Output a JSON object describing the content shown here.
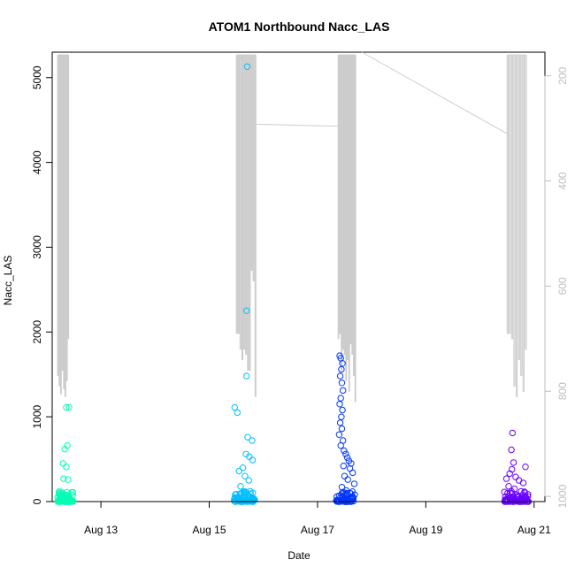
{
  "chart_data": {
    "type": "scatter",
    "title": "ATOM1 Northbound Nacc_LAS",
    "xlabel": "Date",
    "ylabel": "Nacc_LAS",
    "x_ticks": [
      "Aug 13",
      "Aug 15",
      "Aug 17",
      "Aug 19",
      "Aug 21"
    ],
    "x_tick_values": [
      13,
      15,
      17,
      19,
      21
    ],
    "xlim": [
      12.1,
      21.2
    ],
    "y_ticks": [
      "0",
      "1000",
      "2000",
      "3000",
      "4000",
      "5000"
    ],
    "y_tick_values": [
      0,
      1000,
      2000,
      3000,
      4000,
      5000
    ],
    "ylim": [
      0,
      5300
    ],
    "y2_ticks": [
      "200",
      "400",
      "600",
      "800",
      "1000"
    ],
    "y2_tick_values": [
      200,
      400,
      600,
      800,
      1000
    ],
    "y2_reversed": true,
    "y2_lim": [
      155,
      1010
    ],
    "grid": false,
    "colors": {
      "axis": "#000000",
      "secondary_axis": "#bdbdbd",
      "depth_line": "#cccccc",
      "series": [
        "#00ffb3",
        "#00bfff",
        "#0037ff",
        "#6a00ff"
      ]
    },
    "series": [
      {
        "x_range": [
          12.2,
          12.5
        ],
        "color": "#00ffb3",
        "points": [
          [
            12.36,
            1110
          ],
          [
            12.41,
            1110
          ],
          [
            12.38,
            660
          ],
          [
            12.33,
            620
          ],
          [
            12.3,
            450
          ],
          [
            12.36,
            410
          ],
          [
            12.31,
            270
          ],
          [
            12.39,
            260
          ],
          [
            12.37,
            110
          ],
          [
            12.3,
            60
          ],
          [
            12.33,
            40
          ],
          [
            12.35,
            30
          ],
          [
            12.4,
            20
          ],
          [
            12.26,
            10
          ],
          [
            12.44,
            5
          ]
        ]
      },
      {
        "x_range": [
          15.45,
          15.85
        ],
        "color": "#00bfff",
        "points": [
          [
            15.7,
            5130
          ],
          [
            15.69,
            2250
          ],
          [
            15.69,
            1480
          ],
          [
            15.47,
            1110
          ],
          [
            15.52,
            1050
          ],
          [
            15.71,
            760
          ],
          [
            15.79,
            720
          ],
          [
            15.68,
            560
          ],
          [
            15.74,
            530
          ],
          [
            15.8,
            490
          ],
          [
            15.62,
            400
          ],
          [
            15.55,
            360
          ],
          [
            15.66,
            300
          ],
          [
            15.73,
            250
          ],
          [
            15.58,
            180
          ],
          [
            15.76,
            120
          ],
          [
            15.64,
            80
          ],
          [
            15.5,
            40
          ],
          [
            15.8,
            20
          ],
          [
            15.6,
            5
          ]
        ]
      },
      {
        "x_range": [
          17.35,
          17.7
        ],
        "color": "#0037ff",
        "points": [
          [
            17.41,
            1720
          ],
          [
            17.43,
            1690
          ],
          [
            17.46,
            1630
          ],
          [
            17.44,
            1560
          ],
          [
            17.42,
            1480
          ],
          [
            17.45,
            1400
          ],
          [
            17.47,
            1310
          ],
          [
            17.43,
            1220
          ],
          [
            17.41,
            1150
          ],
          [
            17.46,
            1080
          ],
          [
            17.44,
            1000
          ],
          [
            17.42,
            930
          ],
          [
            17.45,
            860
          ],
          [
            17.4,
            790
          ],
          [
            17.47,
            720
          ],
          [
            17.43,
            660
          ],
          [
            17.49,
            600
          ],
          [
            17.52,
            560
          ],
          [
            17.55,
            520
          ],
          [
            17.58,
            480
          ],
          [
            17.62,
            450
          ],
          [
            17.48,
            420
          ],
          [
            17.6,
            390
          ],
          [
            17.65,
            340
          ],
          [
            17.5,
            300
          ],
          [
            17.56,
            260
          ],
          [
            17.68,
            210
          ],
          [
            17.45,
            170
          ],
          [
            17.53,
            130
          ],
          [
            17.6,
            100
          ],
          [
            17.4,
            70
          ],
          [
            17.66,
            50
          ],
          [
            17.5,
            30
          ],
          [
            17.57,
            10
          ]
        ]
      },
      {
        "x_range": [
          20.45,
          20.9
        ],
        "color": "#6a00ff",
        "points": [
          [
            20.6,
            810
          ],
          [
            20.58,
            610
          ],
          [
            20.62,
            460
          ],
          [
            20.59,
            380
          ],
          [
            20.84,
            410
          ],
          [
            20.55,
            330
          ],
          [
            20.66,
            290
          ],
          [
            20.49,
            270
          ],
          [
            20.72,
            250
          ],
          [
            20.8,
            220
          ],
          [
            20.53,
            180
          ],
          [
            20.64,
            150
          ],
          [
            20.76,
            120
          ],
          [
            20.51,
            100
          ],
          [
            20.68,
            80
          ],
          [
            20.84,
            60
          ],
          [
            20.58,
            40
          ],
          [
            20.7,
            20
          ],
          [
            20.47,
            10
          ],
          [
            20.87,
            5
          ]
        ]
      }
    ],
    "depth_trace": {
      "axis": "secondary",
      "dives": [
        {
          "x_range": [
            12.2,
            12.42
          ],
          "bottoms": [
            770,
            790,
            805,
            760,
            795,
            810,
            780,
            700
          ],
          "top": 160
        },
        {
          "x_range": [
            15.5,
            15.88
          ],
          "bottoms": [
            690,
            690,
            720,
            740,
            720,
            730,
            760,
            760,
            570,
            590,
            810
          ],
          "top": 160
        },
        {
          "x_range": [
            17.38,
            17.72
          ],
          "bottoms": [
            700,
            690,
            760,
            720,
            730,
            780,
            740,
            800,
            710,
            730,
            770,
            820
          ],
          "top": 160
        },
        {
          "x_range": [
            20.5,
            20.88
          ],
          "bottoms": [
            690,
            690,
            700,
            790,
            810,
            740,
            770,
            800,
            720
          ],
          "top": 160
        }
      ],
      "transits": [
        [
          15.88,
          292,
          17.38,
          296
        ],
        [
          17.82,
          155,
          20.5,
          310
        ]
      ]
    }
  }
}
